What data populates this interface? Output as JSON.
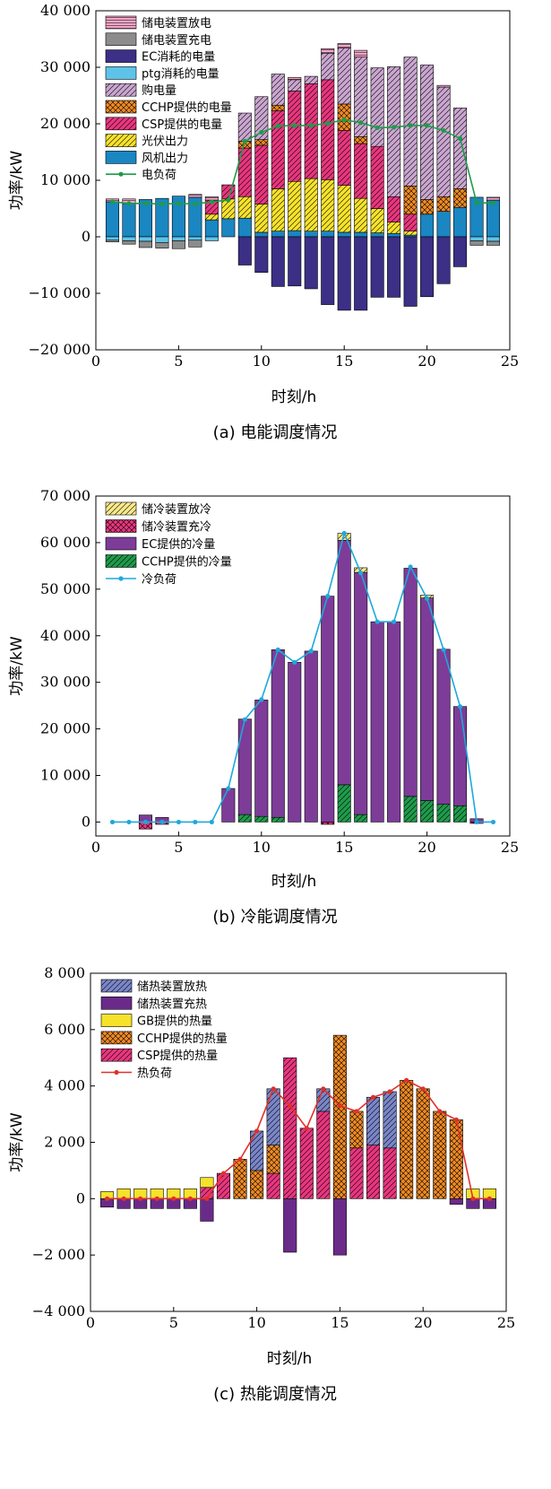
{
  "colors": {
    "store_discharge_e": "#f4a6c8",
    "store_charge_e": "#8c8c8c",
    "ec_e": "#3b2f86",
    "ptg_e": "#5ec3e8",
    "buy": "#c9a6cf",
    "cchp": "#f08a24",
    "csp": "#e8367e",
    "pv": "#f7e22a",
    "wind": "#1a86c2",
    "load_e": "#1e9b4a",
    "cold_dis": "#f8e98a",
    "cold_chg": "#e8367e",
    "ec_c": "#7d3c98",
    "cchp_c": "#1e9b4a",
    "load_c": "#1fa8dc",
    "heat_dis": "#7a86c8",
    "heat_chg": "#6a2a8a",
    "gb": "#f7e22a",
    "cchp_h": "#f08a24",
    "csp_h": "#e8367e",
    "load_h": "#e0302a"
  },
  "chart_data": [
    {
      "type": "bar",
      "stacked": true,
      "caption": "(a) 电能调度情况",
      "xlabel": "时刻/h",
      "ylabel": "功率/kW",
      "xlim": [
        0,
        25
      ],
      "ylim": [
        -20000,
        40000
      ],
      "xticks": [
        0,
        5,
        10,
        15,
        20,
        25
      ],
      "yticks": [
        -20000,
        -10000,
        0,
        10000,
        20000,
        30000,
        40000
      ],
      "ytick_labels": [
        "−20 000",
        "−10 000",
        "0",
        "10 000",
        "20 000",
        "30 000",
        "40 000"
      ],
      "xtick_labels": [
        "0",
        "5",
        "10",
        "15",
        "20",
        "25"
      ],
      "x": [
        1,
        2,
        3,
        4,
        5,
        6,
        7,
        8,
        9,
        10,
        11,
        12,
        13,
        14,
        15,
        16,
        17,
        18,
        19,
        20,
        21,
        22,
        23,
        24
      ],
      "positive_series": [
        {
          "name": "风机出力",
          "color_key": "wind",
          "pattern": "",
          "values": [
            6200,
            5900,
            6600,
            6800,
            7200,
            7000,
            3000,
            3200,
            3300,
            800,
            1000,
            1100,
            1000,
            1000,
            800,
            800,
            700,
            600,
            300,
            4000,
            4500,
            5200,
            7000,
            6500
          ]
        },
        {
          "name": "光伏出力",
          "color_key": "pv",
          "pattern": "diag",
          "values": [
            0,
            0,
            0,
            0,
            0,
            0,
            1000,
            3500,
            3800,
            5000,
            7500,
            8700,
            9300,
            9100,
            8300,
            6000,
            4300,
            2000,
            700,
            0,
            0,
            0,
            0,
            0
          ]
        },
        {
          "name": "CSP提供的电量",
          "color_key": "csp",
          "pattern": "diag",
          "values": [
            0,
            0,
            0,
            0,
            0,
            0,
            2500,
            2500,
            8600,
            10400,
            13800,
            16000,
            16800,
            17700,
            9700,
            9700,
            11000,
            4500,
            3000,
            0,
            0,
            0,
            0,
            0
          ]
        },
        {
          "name": "CCHP提供的电量",
          "color_key": "cchp",
          "pattern": "cross",
          "values": [
            0,
            0,
            0,
            0,
            0,
            0,
            0,
            0,
            1200,
            1000,
            1000,
            0,
            0,
            0,
            4700,
            1200,
            0,
            0,
            5000,
            2600,
            2600,
            3300,
            0,
            0
          ]
        },
        {
          "name": "购电量",
          "color_key": "buy",
          "pattern": "diag",
          "values": [
            0,
            0,
            0,
            0,
            0,
            0,
            0,
            0,
            5000,
            7600,
            5500,
            2000,
            1300,
            4700,
            9900,
            14100,
            13900,
            23000,
            22800,
            23800,
            19400,
            14300,
            0,
            0
          ]
        },
        {
          "name": "ptg消耗的电量",
          "color_key": "ptg_e",
          "pattern": "",
          "values": [
            0,
            0,
            0,
            0,
            0,
            0,
            0,
            0,
            0,
            0,
            0,
            0,
            0,
            0,
            0,
            0,
            0,
            0,
            0,
            0,
            0,
            0,
            0,
            0
          ]
        },
        {
          "name": "储电装置放电",
          "color_key": "store_discharge_e",
          "pattern": "hlines",
          "values": [
            500,
            800,
            0,
            0,
            0,
            500,
            600,
            0,
            0,
            0,
            0,
            400,
            0,
            800,
            800,
            1200,
            0,
            0,
            0,
            0,
            300,
            0,
            0,
            500
          ]
        }
      ],
      "negative_series": [
        {
          "name": "EC消耗的电量",
          "color_key": "ec_e",
          "pattern": "",
          "values": [
            0,
            0,
            0,
            0,
            0,
            0,
            0,
            0,
            -5000,
            -6300,
            -8800,
            -8700,
            -9200,
            -12000,
            -13000,
            -13000,
            -10700,
            -10700,
            -12300,
            -10600,
            -8300,
            -5300,
            0,
            0
          ]
        },
        {
          "name": "ptg消耗的电量",
          "color_key": "ptg_e",
          "pattern": "",
          "values": [
            -600,
            -700,
            -800,
            -1000,
            -700,
            -600,
            -700,
            0,
            0,
            0,
            0,
            0,
            0,
            0,
            0,
            0,
            0,
            0,
            0,
            0,
            0,
            0,
            -700,
            -800
          ]
        },
        {
          "name": "储电装置充电",
          "color_key": "store_charge_e",
          "pattern": "",
          "values": [
            -300,
            -600,
            -1100,
            -1000,
            -1400,
            -1200,
            0,
            0,
            0,
            0,
            0,
            0,
            0,
            0,
            0,
            0,
            0,
            0,
            0,
            0,
            0,
            0,
            -800,
            -700
          ]
        }
      ],
      "line": {
        "name": "电负荷",
        "color_key": "load_e",
        "values": [
          6200,
          5900,
          5900,
          5800,
          5900,
          5800,
          6200,
          6500,
          16900,
          18500,
          19600,
          19700,
          19700,
          20100,
          20700,
          20200,
          19300,
          19400,
          19700,
          19700,
          18800,
          17400,
          6000,
          6000
        ]
      },
      "legend": [
        "储电装置放电",
        "储电装置充电",
        "EC消耗的电量",
        "ptg消耗的电量",
        "购电量",
        "CCHP提供的电量",
        "CSP提供的电量",
        "光伏出力",
        "风机出力",
        "电负荷"
      ]
    },
    {
      "type": "bar",
      "stacked": true,
      "caption": "(b) 冷能调度情况",
      "xlabel": "时刻/h",
      "ylabel": "功率/kW",
      "xlim": [
        0,
        25
      ],
      "ylim": [
        -3000,
        70000
      ],
      "xticks": [
        0,
        5,
        10,
        15,
        20,
        25
      ],
      "yticks": [
        0,
        10000,
        20000,
        30000,
        40000,
        50000,
        60000,
        70000
      ],
      "ytick_labels": [
        "0",
        "10 000",
        "20 000",
        "30 000",
        "40 000",
        "50 000",
        "60 000",
        "70 000"
      ],
      "xtick_labels": [
        "0",
        "5",
        "10",
        "15",
        "20",
        "25"
      ],
      "x": [
        1,
        2,
        3,
        4,
        5,
        6,
        7,
        8,
        9,
        10,
        11,
        12,
        13,
        14,
        15,
        16,
        17,
        18,
        19,
        20,
        21,
        22,
        23,
        24
      ],
      "positive_series": [
        {
          "name": "CCHP提供的冷量",
          "color_key": "cchp_c",
          "pattern": "diag",
          "values": [
            0,
            0,
            0,
            0,
            0,
            0,
            0,
            0,
            1600,
            1200,
            1000,
            0,
            0,
            0,
            8000,
            1600,
            0,
            0,
            5500,
            4600,
            3800,
            3500,
            0,
            0
          ]
        },
        {
          "name": "EC提供的冷量",
          "color_key": "ec_c",
          "pattern": "",
          "values": [
            0,
            0,
            1500,
            1000,
            0,
            0,
            0,
            7200,
            20500,
            25000,
            36000,
            34300,
            36700,
            48500,
            52500,
            52000,
            43000,
            43000,
            49000,
            43500,
            33300,
            21300,
            700,
            0
          ]
        },
        {
          "name": "储冷装置放冷",
          "color_key": "cold_dis",
          "pattern": "diag",
          "values": [
            0,
            0,
            0,
            0,
            0,
            0,
            0,
            0,
            0,
            0,
            0,
            0,
            0,
            0,
            1500,
            1000,
            0,
            0,
            0,
            600,
            0,
            0,
            0,
            0
          ]
        }
      ],
      "negative_series": [
        {
          "name": "储冷装置充冷",
          "color_key": "cold_chg",
          "pattern": "cross",
          "values": [
            0,
            0,
            -1500,
            -500,
            0,
            0,
            0,
            0,
            0,
            0,
            0,
            0,
            0,
            -500,
            0,
            0,
            0,
            0,
            0,
            0,
            0,
            0,
            -300,
            0
          ]
        }
      ],
      "line": {
        "name": "冷负荷",
        "color_key": "load_c",
        "values": [
          0,
          0,
          0,
          0,
          0,
          0,
          0,
          7200,
          22000,
          26300,
          37000,
          34300,
          36700,
          48500,
          62000,
          53500,
          43000,
          43000,
          54800,
          48000,
          37000,
          24800,
          0,
          0
        ]
      },
      "legend": [
        "储冷装置放冷",
        "储冷装置充冷",
        "EC提供的冷量",
        "CCHP提供的冷量",
        "冷负荷"
      ]
    },
    {
      "type": "bar",
      "stacked": true,
      "caption": "(c) 热能调度情况",
      "xlabel": "时刻/h",
      "ylabel": "功率/kW",
      "xlim": [
        0,
        25
      ],
      "ylim": [
        -4000,
        8000
      ],
      "xticks": [
        0,
        5,
        10,
        15,
        20,
        25
      ],
      "yticks": [
        -4000,
        -2000,
        0,
        2000,
        4000,
        6000,
        8000
      ],
      "ytick_labels": [
        "−4 000",
        "−2 000",
        "0",
        "2 000",
        "4 000",
        "6 000",
        "8 000"
      ],
      "xtick_labels": [
        "0",
        "5",
        "10",
        "15",
        "20",
        "25"
      ],
      "x": [
        1,
        2,
        3,
        4,
        5,
        6,
        7,
        8,
        9,
        10,
        11,
        12,
        13,
        14,
        15,
        16,
        17,
        18,
        19,
        20,
        21,
        22,
        23,
        24
      ],
      "positive_series": [
        {
          "name": "CSP提供的热量",
          "color_key": "csp_h",
          "pattern": "diag",
          "values": [
            0,
            0,
            0,
            0,
            0,
            0,
            400,
            900,
            0,
            0,
            900,
            5000,
            2500,
            3100,
            0,
            1800,
            1900,
            1800,
            0,
            0,
            0,
            0,
            0,
            0
          ]
        },
        {
          "name": "CCHP提供的热量",
          "color_key": "cchp_h",
          "pattern": "cross",
          "values": [
            0,
            0,
            0,
            0,
            0,
            0,
            0,
            0,
            1400,
            1000,
            1000,
            0,
            0,
            0,
            5800,
            1300,
            0,
            0,
            4200,
            3900,
            3100,
            2800,
            0,
            0
          ]
        },
        {
          "name": "GB提供的热量",
          "color_key": "gb",
          "pattern": "",
          "values": [
            250,
            350,
            350,
            350,
            350,
            350,
            350,
            0,
            0,
            0,
            0,
            0,
            0,
            0,
            0,
            0,
            0,
            0,
            0,
            0,
            0,
            0,
            350,
            350
          ]
        },
        {
          "name": "储热装置放热",
          "color_key": "heat_dis",
          "pattern": "diag",
          "values": [
            0,
            0,
            0,
            0,
            0,
            0,
            0,
            0,
            0,
            1400,
            2000,
            0,
            0,
            800,
            0,
            0,
            1700,
            2000,
            0,
            0,
            0,
            0,
            0,
            0
          ]
        }
      ],
      "negative_series": [
        {
          "name": "储热装置充热",
          "color_key": "heat_chg",
          "pattern": "",
          "values": [
            -300,
            -350,
            -350,
            -350,
            -350,
            -350,
            -800,
            0,
            0,
            0,
            0,
            -1900,
            0,
            0,
            -2000,
            0,
            0,
            0,
            0,
            0,
            0,
            -200,
            -350,
            -350
          ]
        }
      ],
      "line": {
        "name": "热负荷",
        "color_key": "load_h",
        "values": [
          0,
          0,
          0,
          0,
          0,
          0,
          0,
          900,
          1400,
          2400,
          3900,
          3300,
          2500,
          3900,
          3300,
          3100,
          3600,
          3800,
          4200,
          3900,
          3100,
          2800,
          0,
          0
        ]
      },
      "legend": [
        "储热装置放热",
        "储热装置充热",
        "GB提供的热量",
        "CCHP提供的热量",
        "CSP提供的热量",
        "热负荷"
      ]
    }
  ]
}
